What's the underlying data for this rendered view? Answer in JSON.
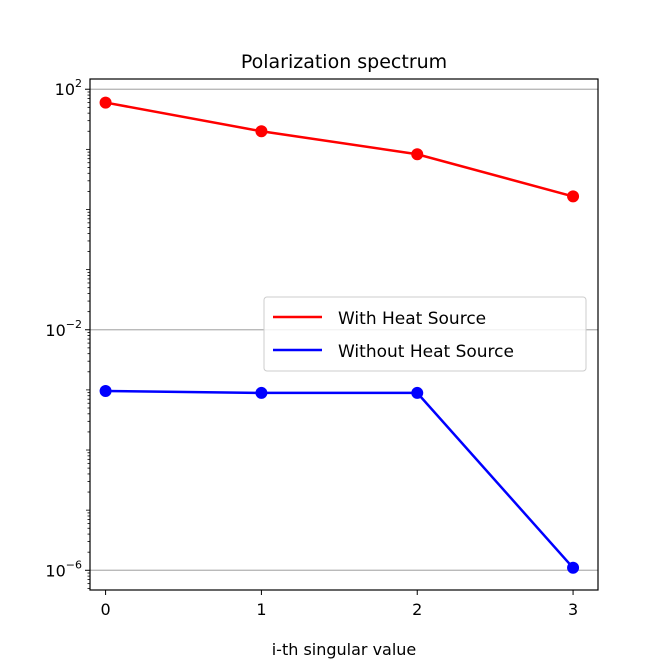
{
  "chart_data": {
    "type": "line",
    "title": "Polarization spectrum",
    "xlabel": "i-th singular value",
    "ylabel": "",
    "x": [
      0,
      1,
      2,
      3
    ],
    "xticks": [
      "0",
      "1",
      "2",
      "3"
    ],
    "xlim": [
      -0.1,
      3.16
    ],
    "yscale": "log",
    "ylim": [
      4.7e-07,
      148
    ],
    "yticks": [
      {
        "base": "10",
        "exp": "2",
        "value": 100
      },
      {
        "base": "10",
        "exp": "−2",
        "value": 0.01
      },
      {
        "base": "10",
        "exp": "−6",
        "value": 1e-06
      }
    ],
    "grid": "y-major",
    "legend_position": "center-right",
    "series": [
      {
        "name": "With Heat Source",
        "color": "#ff0000",
        "marker": "circle",
        "values": [
          60,
          20,
          8.3,
          1.65
        ]
      },
      {
        "name": "Without Heat Source",
        "color": "#0000ff",
        "marker": "circle",
        "values": [
          0.00096,
          0.00089,
          0.00089,
          1.1e-06
        ]
      }
    ]
  }
}
